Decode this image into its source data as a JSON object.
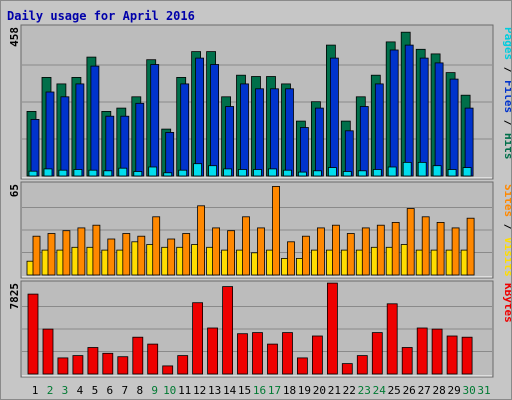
{
  "chart_data": {
    "type": "bar",
    "title": "Daily usage for April 2016",
    "colors": {
      "hits": "#006f4a",
      "files": "#0033cc",
      "pages": "#00ddee",
      "visits": "#ffdd00",
      "sites": "#ff8800",
      "kbytes": "#ee0000",
      "weekend_day_label": "#007a33",
      "weekday_label": "#000000",
      "title": "#0000aa",
      "panel_bg": "#bcbcbc"
    },
    "days": [
      "1",
      "2",
      "3",
      "4",
      "5",
      "6",
      "7",
      "8",
      "9",
      "10",
      "11",
      "12",
      "13",
      "14",
      "15",
      "16",
      "17",
      "18",
      "19",
      "20",
      "21",
      "22",
      "23",
      "24",
      "25",
      "26",
      "27",
      "28",
      "29",
      "30",
      "31"
    ],
    "weekend_days": [
      "2",
      "3",
      "9",
      "10",
      "16",
      "17",
      "23",
      "24",
      "30",
      "31"
    ],
    "panels": [
      {
        "id": "hits-files-pages",
        "max_label": "458",
        "ymax": 458,
        "right_label": [
          {
            "text": "Pages",
            "color": "#00ccdd"
          },
          {
            "text": " / ",
            "color": "#000000"
          },
          {
            "text": "Files",
            "color": "#0033cc"
          },
          {
            "text": " / ",
            "color": "#000000"
          },
          {
            "text": "Hits",
            "color": "#006f4a"
          }
        ],
        "series": [
          {
            "name": "Hits",
            "values": [
              200,
              305,
              285,
              305,
              368,
              200,
              210,
              245,
              360,
              145,
              305,
              385,
              385,
              245,
              312,
              308,
              308,
              285,
              170,
              230,
              405,
              170,
              245,
              312,
              415,
              445,
              392,
              378,
              320,
              250,
              null
            ]
          },
          {
            "name": "Files",
            "values": [
              175,
              260,
              245,
              285,
              340,
              185,
              185,
              225,
              345,
              135,
              285,
              365,
              345,
              215,
              285,
              270,
              270,
              270,
              150,
              210,
              365,
              140,
              215,
              285,
              390,
              405,
              365,
              350,
              300,
              210,
              null
            ]
          },
          {
            "name": "Pages",
            "values": [
              15,
              22,
              18,
              20,
              18,
              16,
              24,
              14,
              28,
              10,
              18,
              38,
              32,
              22,
              20,
              20,
              22,
              18,
              12,
              16,
              26,
              14,
              16,
              20,
              28,
              42,
              42,
              32,
              20,
              26,
              null
            ]
          }
        ]
      },
      {
        "id": "visits-sites",
        "max_label": "65",
        "ymax": 65,
        "right_label": [
          {
            "text": "Sites",
            "color": "#ff8800"
          },
          {
            "text": " / ",
            "color": "#000000"
          },
          {
            "text": "Visits",
            "color": "#ffdd00"
          }
        ],
        "series": [
          {
            "name": "Visits",
            "values": [
              10,
              18,
              18,
              20,
              20,
              18,
              18,
              24,
              22,
              20,
              20,
              22,
              20,
              18,
              18,
              16,
              18,
              12,
              12,
              18,
              18,
              18,
              18,
              20,
              20,
              22,
              18,
              18,
              18,
              18,
              null
            ]
          },
          {
            "name": "Sites",
            "values": [
              28,
              30,
              32,
              34,
              36,
              26,
              30,
              28,
              42,
              26,
              30,
              50,
              34,
              32,
              42,
              34,
              64,
              24,
              28,
              34,
              36,
              30,
              34,
              36,
              38,
              48,
              42,
              38,
              34,
              41,
              null
            ]
          }
        ]
      },
      {
        "id": "kbytes",
        "max_label": "7825",
        "ymax": 7825,
        "right_label": [
          {
            "text": "KBytes",
            "color": "#ee0000"
          }
        ],
        "series": [
          {
            "name": "KBytes",
            "values": [
              6950,
              3900,
              1400,
              1600,
              2300,
              1800,
              1500,
              3200,
              2600,
              700,
              1600,
              6200,
              4000,
              7600,
              3500,
              3600,
              2600,
              3600,
              1400,
              3300,
              7900,
              900,
              1600,
              3600,
              6100,
              2300,
              4000,
              3900,
              3300,
              3200,
              null
            ]
          }
        ]
      }
    ]
  }
}
